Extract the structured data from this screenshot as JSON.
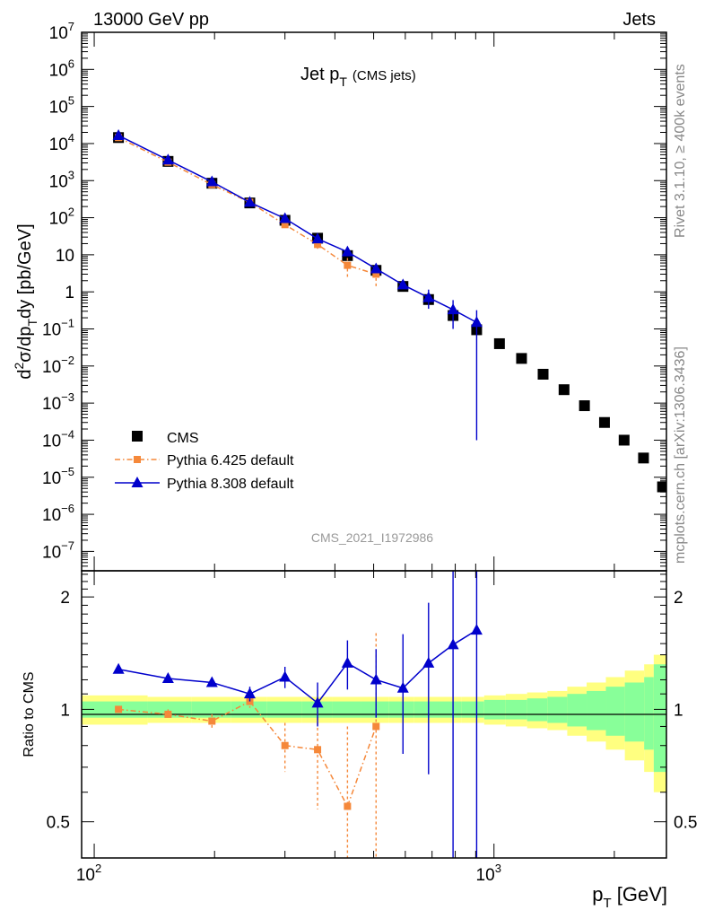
{
  "header": {
    "left": "13000 GeV pp",
    "right": "Jets"
  },
  "side_labels": {
    "rivet": "Rivet 3.1.10, ≥ 400k events",
    "mcplots": "mcplots.cern.ch [arXiv:1306.3436]"
  },
  "watermark": "CMS_2021_I1972986",
  "colors": {
    "cms": "#000000",
    "py6": "#f5883a",
    "py8": "#0000cc",
    "band_outer": "#ffff80",
    "band_inner": "#88ff99"
  },
  "chart_data": [
    {
      "type": "scatter",
      "title": "Jet p",
      "title_sub": "T",
      "title_suffix": "(CMS jets)",
      "ylabel": {
        "d": "d",
        "two": "2",
        "sigma": "σ/dp",
        "t": "T",
        "rest": "dy [pb/GeV]"
      },
      "xscale": "log",
      "yscale": "log",
      "xlim": [
        93,
        2700
      ],
      "ylim": [
        3e-08,
        10000000.0
      ],
      "y_ticks": [
        {
          "v": 10000000.0,
          "m": "10",
          "e": "7"
        },
        {
          "v": 1000000.0,
          "m": "10",
          "e": "6"
        },
        {
          "v": 100000.0,
          "m": "10",
          "e": "5"
        },
        {
          "v": 10000.0,
          "m": "10",
          "e": "4"
        },
        {
          "v": 1000.0,
          "m": "10",
          "e": "3"
        },
        {
          "v": 100.0,
          "m": "10",
          "e": "2"
        },
        {
          "v": 10,
          "m": "10",
          "e": ""
        },
        {
          "v": 1,
          "m": "1",
          "e": ""
        },
        {
          "v": 0.1,
          "m": "10",
          "e": "−1"
        },
        {
          "v": 0.01,
          "m": "10",
          "e": "−2"
        },
        {
          "v": 0.001,
          "m": "10",
          "e": "−3"
        },
        {
          "v": 0.0001,
          "m": "10",
          "e": "−4"
        },
        {
          "v": 1e-05,
          "m": "10",
          "e": "−5"
        },
        {
          "v": 1e-06,
          "m": "10",
          "e": "−6"
        },
        {
          "v": 1e-07,
          "m": "10",
          "e": "−7"
        }
      ],
      "legend": {
        "position": "bottom-left",
        "entries": [
          "CMS",
          "Pythia 6.425 default",
          "Pythia 8.308 default"
        ]
      },
      "series": [
        {
          "name": "CMS",
          "marker": "square",
          "x": [
            115,
            153,
            197,
            245,
            300,
            362,
            430,
            507,
            592,
            686,
            790,
            905,
            1032,
            1172,
            1327,
            1497,
            1684,
            1890,
            2116,
            2366,
            2640
          ],
          "y": [
            14500,
            3300,
            850,
            250,
            85,
            28,
            9.5,
            3.8,
            1.4,
            0.62,
            0.23,
            0.095,
            0.04,
            0.016,
            0.006,
            0.0023,
            0.00085,
            0.0003,
            0.0001,
            3.3e-05,
            5.5e-06
          ]
        },
        {
          "name": "Pythia 6.425 default",
          "marker": "square",
          "x": [
            115,
            153,
            197,
            245,
            300,
            362,
            430,
            507
          ],
          "y": [
            14500,
            3150,
            780,
            260,
            65,
            19,
            5.2,
            3.0
          ],
          "yerr_lo": [
            0,
            0,
            0,
            0,
            9,
            4.5,
            3.0,
            1.6
          ],
          "yerr_hi": [
            0,
            0,
            0,
            0,
            9,
            4.5,
            3.0,
            1.6
          ]
        },
        {
          "name": "Pythia 8.308 default",
          "marker": "triangle",
          "x": [
            115,
            153,
            197,
            245,
            300,
            362,
            430,
            507,
            592,
            686,
            790,
            905
          ],
          "y": [
            16500,
            3600,
            930,
            260,
            95,
            27,
            12,
            4.2,
            1.55,
            0.7,
            0.33,
            0.15
          ],
          "yerr_lo": [
            0,
            0,
            0,
            0,
            0,
            0,
            0,
            0.3,
            0.35,
            0.35,
            0.23,
            0.1499
          ],
          "yerr_hi": [
            0,
            0,
            0,
            0,
            0,
            0,
            0,
            0.3,
            0.35,
            0.45,
            0.27,
            0.17
          ]
        }
      ]
    },
    {
      "type": "scatter",
      "ylabel": "Ratio to CMS",
      "xlabel": {
        "p": "p",
        "t": "T",
        "rest": " [GeV]"
      },
      "xscale": "log",
      "yscale": "log",
      "xlim": [
        93,
        2700
      ],
      "ylim": [
        0.4,
        2.35
      ],
      "x_ticks": [
        {
          "v": 100,
          "m": "10",
          "e": "2"
        },
        {
          "v": 1000,
          "m": "10",
          "e": "3"
        }
      ],
      "y_ticks": [
        {
          "v": 0.5,
          "label": "0.5"
        },
        {
          "v": 1,
          "label": "1"
        },
        {
          "v": 2,
          "label": "2"
        }
      ],
      "reference_line": 1,
      "band_edges": [
        93,
        136,
        175,
        220,
        270,
        330,
        395,
        465,
        545,
        630,
        725,
        830,
        945,
        1070,
        1210,
        1360,
        1525,
        1705,
        1905,
        2125,
        2375,
        2510,
        2700
      ],
      "band_inner": [
        0.05,
        0.05,
        0.05,
        0.05,
        0.05,
        0.05,
        0.05,
        0.05,
        0.05,
        0.05,
        0.05,
        0.05,
        0.06,
        0.06,
        0.07,
        0.08,
        0.1,
        0.12,
        0.15,
        0.18,
        0.22,
        0.32
      ],
      "band_outer": [
        0.09,
        0.08,
        0.08,
        0.08,
        0.08,
        0.08,
        0.08,
        0.08,
        0.08,
        0.08,
        0.08,
        0.08,
        0.09,
        0.1,
        0.11,
        0.12,
        0.15,
        0.18,
        0.22,
        0.27,
        0.32,
        0.4
      ],
      "series": [
        {
          "name": "Pythia 6.425 default",
          "marker": "square",
          "x": [
            115,
            153,
            197,
            245,
            300,
            362,
            430,
            507
          ],
          "y": [
            1.0,
            0.97,
            0.93,
            1.05,
            0.8,
            0.78,
            0.55,
            0.9
          ],
          "yerr_lo": [
            0.01,
            0.03,
            0.04,
            0.04,
            0.12,
            0.24,
            0.17,
            0.5
          ],
          "yerr_hi": [
            0.01,
            0.03,
            0.04,
            0.04,
            0.12,
            0.24,
            0.35,
            0.7
          ]
        },
        {
          "name": "Pythia 8.308 default",
          "marker": "triangle",
          "x": [
            115,
            153,
            197,
            245,
            300,
            362,
            430,
            507,
            592,
            686,
            790,
            905
          ],
          "y": [
            1.28,
            1.21,
            1.18,
            1.1,
            1.22,
            1.04,
            1.33,
            1.2,
            1.14,
            1.33,
            1.49,
            1.63
          ],
          "yerr_lo": [
            0,
            0,
            0,
            0.05,
            0.08,
            0.14,
            0.2,
            0.25,
            0.38,
            0.66,
            1.2,
            1.3
          ],
          "yerr_hi": [
            0,
            0,
            0,
            0.05,
            0.08,
            0.14,
            0.2,
            0.25,
            0.45,
            0.6,
            0.9,
            0.8
          ]
        }
      ]
    }
  ]
}
